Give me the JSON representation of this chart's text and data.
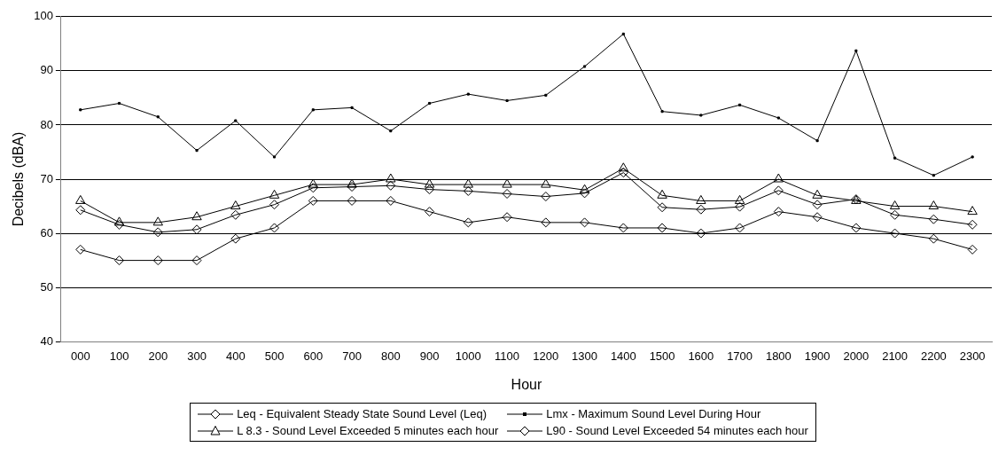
{
  "chart_data": {
    "type": "line",
    "xlabel": "Hour",
    "ylabel": "Decibels (dBA)",
    "categories": [
      "000",
      "100",
      "200",
      "300",
      "400",
      "500",
      "600",
      "700",
      "800",
      "900",
      "1000",
      "1100",
      "1200",
      "1300",
      "1400",
      "1500",
      "1600",
      "1700",
      "1800",
      "1900",
      "2000",
      "2100",
      "2200",
      "2300"
    ],
    "ylim": [
      40,
      100
    ],
    "yticks": [
      40,
      50,
      60,
      70,
      80,
      90,
      100
    ],
    "grid": "y",
    "legend": "bottom",
    "series": [
      {
        "name": "Leq - Equivalent Steady State Sound Level (Leq)",
        "color": "#000000",
        "marker": "diamond",
        "values": [
          64.3,
          61.6,
          60.2,
          60.7,
          63.4,
          65.3,
          68.4,
          68.6,
          68.8,
          68.1,
          67.8,
          67.3,
          66.8,
          67.4,
          71.2,
          64.8,
          64.4,
          64.9,
          67.9,
          65.3,
          66.3,
          63.4,
          62.6,
          61.6
        ]
      },
      {
        "name": "Lmx - Maximum Sound Level During Hour",
        "color": "#000000",
        "marker": "square",
        "values": [
          82.8,
          84,
          81.5,
          75.3,
          80.8,
          74.1,
          82.8,
          83.2,
          78.9,
          84,
          85.7,
          84.5,
          85.5,
          90.8,
          96.8,
          82.5,
          81.8,
          83.7,
          81.3,
          77.1,
          93.7,
          73.9,
          70.7,
          74.1
        ]
      },
      {
        "name": "L 8.3 - Sound Level Exceeded 5 minutes each hour",
        "color": "#000000",
        "marker": "triangle",
        "values": [
          66,
          62,
          62,
          63,
          65,
          67,
          69,
          69,
          70,
          69,
          69,
          69,
          69,
          68,
          72,
          67,
          66,
          66,
          70,
          67,
          66,
          65,
          65,
          64
        ]
      },
      {
        "name": "L90 - Sound Level Exceeded 54 minutes each hour",
        "color": "#000000",
        "marker": "diamond",
        "values": [
          57,
          55,
          55,
          55,
          59,
          61,
          66,
          66,
          66,
          64,
          62,
          63,
          62,
          62,
          61,
          61,
          60,
          61,
          64,
          63,
          61,
          60,
          59,
          57
        ]
      }
    ]
  }
}
